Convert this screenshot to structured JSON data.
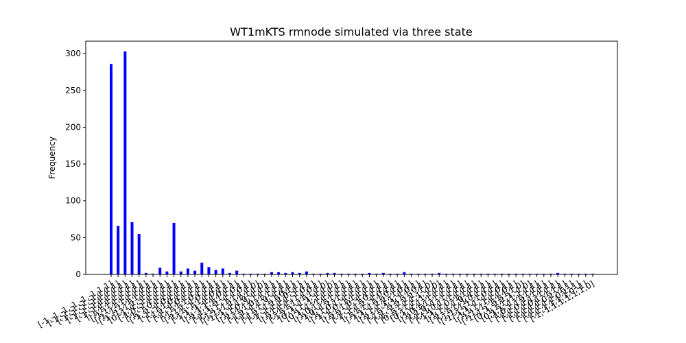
{
  "chart_data": {
    "type": "bar",
    "title": "WT1mKTS rmnode simulated via three state",
    "xlabel": "",
    "ylabel": "Frequency",
    "ylim": [
      0,
      317
    ],
    "yticks": [
      0,
      50,
      100,
      150,
      200,
      250,
      300
    ],
    "bar_color": "#0000ff",
    "grid": false,
    "values": [
      286,
      66,
      303,
      71,
      55,
      2,
      1,
      9,
      4,
      70,
      4,
      8,
      5,
      16,
      10,
      6,
      8,
      2,
      5,
      1,
      1,
      1,
      1,
      3,
      3,
      2,
      3,
      2,
      4,
      1,
      1,
      2,
      2,
      1,
      1,
      1,
      1,
      2,
      1,
      2,
      1,
      1,
      3,
      1,
      1,
      1,
      1,
      2,
      1,
      1,
      1,
      1,
      1,
      1,
      1,
      1,
      1,
      1,
      1,
      1,
      1,
      1,
      1,
      1,
      2,
      1,
      1,
      1,
      1,
      1
    ],
    "categories": [
      "[-1,-1,-1,-1,-1,-1,1,1]",
      "[-1,-1,-1,-1,-1,1,1,1]",
      "[-1,-1,-1,-1,1,1,1,1]",
      "[-1,-1,-1,1,1,1,1,1]",
      "[-1,-1,1,1,1,1,1,1]",
      "[-1,1,1,1,1,1,1,1]",
      "[-1,1,-1,1,1,1,1,1]",
      "[-1,-1,1,-1,1,1,1,1]",
      "[-1,-1,-1,1,-1,1,1,1]",
      "[0,-1,-1,-1,1,1,1,1]",
      "[-1,0,-1,1,1,1,1,1]",
      "[-1,-1,0,1,1,1,1,1]",
      "[-1,-1,-1,0,1,1,1,1]",
      "[-1,-1,1,0,1,1,1,1]",
      "[-1,1,-1,0,1,1,1,1]",
      "[-1,-1,1,1,0,1,1,1]",
      "[-1,1,1,-1,0,1,1,1]",
      "[-1,-1,-1,1,1,0,1,1]",
      "[-1,1,-1,-1,1,0,1,1]",
      "[-1,-1,1,1,1,1,0,1]",
      "[-1,1,1,-1,-1,1,0,1]",
      "[-1,-1,1,-1,1,1,1,0]",
      "[-1,1,-1,1,-1,1,1,0]",
      "[-1,-1,-1,1,0,-1,1,1]",
      "[-1,1,0,-1,1,1,1,1]",
      "[-1,-1,1,0,-1,1,1,1]",
      "[-1,1,-1,1,0,-1,1,1]",
      "[-1,-1,1,-1,1,0,1,1]",
      "[-1,1,-1,1,1,0,-1,1]",
      "[-1,-1,1,1,1,-1,0,1]",
      "[-1,1,1,1,-1,1,0,1]",
      "[-1,-1,1,1,-1,1,1,0]",
      "[-1,1,1,-1,1,-1,1,0]",
      "[0,-1,1,-1,1,1,1,1]",
      "[0,1,-1,-1,1,1,1,1]",
      "[-1,0,1,-1,1,1,1,1]",
      "[-1,0,-1,1,-1,1,1,1]",
      "[-1,1,0,1,-1,1,1,1]",
      "[-1,-1,0,-1,1,1,1,1]",
      "[-1,1,1,0,-1,1,1,1]",
      "[-1,1,-1,-1,0,1,1,1]",
      "[-1,-1,1,1,-1,0,1,1]",
      "[-1,1,1,-1,1,0,1,1]",
      "[-1,1,-1,1,1,-1,0,1]",
      "[-1,1,1,1,1,-1,0,1]",
      "[-1,-1,-1,1,1,1,0,1]",
      "[-1,1,-1,1,1,1,-1,0]",
      "[-1,-1,1,1,1,1,-1,0]",
      "[0,-1,-1,1,-1,1,1,1]",
      "[0,1,-1,1,-1,1,1,1]",
      "[-1,0,1,1,-1,1,1,1]",
      "[-1,1,0,-1,-1,1,1,1]",
      "[-1,-1,0,1,-1,1,1,1]",
      "[-1,1,-1,0,-1,1,1,1]",
      "[-1,1,1,1,0,-1,1,1]",
      "[-1,-1,1,-1,0,1,1,1]",
      "[-1,1,-1,1,-1,0,1,1]",
      "[-1,-1,1,-1,-1,1,0,1]",
      "[-1,1,1,-1,1,1,0,1]",
      "[-1,1,-1,-1,1,1,1,0]",
      "[-1,-1,1,-1,1,1,-1,0]",
      "[0,-1,1,1,-1,1,1,1]",
      "[0,1,1,-1,-1,1,1,1]",
      "[-1,0,1,1,1,-1,1,1]",
      "[-1,1,0,1,1,-1,1,1]",
      "[-1,1,1,0,1,-1,1,1]",
      "[-1,1,1,1,0,1,-1,1]",
      "[-1,1,1,1,1,0,1,-1]",
      "[-1,1,1,1,1,1,0,-1]",
      "[-1,-1,1,1,1,1,1,0]"
    ]
  }
}
